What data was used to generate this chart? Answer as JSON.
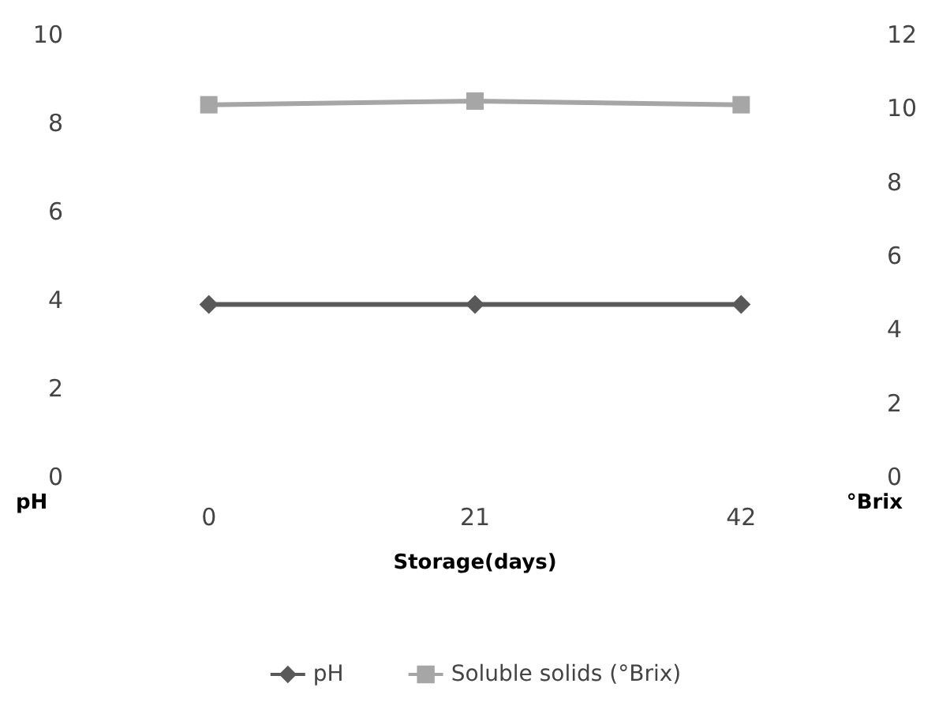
{
  "chart_data": {
    "type": "line",
    "xlabel": "Storage(days)",
    "ylabel": "pH",
    "y2label": "°Brix",
    "categories": [
      "0",
      "21",
      "42"
    ],
    "series": [
      {
        "name": "pH",
        "color": "#595959",
        "marker": "diamond",
        "values": [
          3.9,
          3.9,
          3.9
        ]
      },
      {
        "name": "Soluble solids (°Brix)",
        "color": "#a6a6a6",
        "marker": "square",
        "axis": "y2",
        "values": [
          10.1,
          10.2,
          10.1
        ]
      }
    ],
    "ylim": [
      0,
      10
    ],
    "yticks": [
      0,
      2,
      4,
      6,
      8,
      10
    ],
    "y2lim": [
      0,
      12
    ],
    "y2ticks": [
      0,
      2,
      4,
      6,
      8,
      10,
      12
    ],
    "grid": false,
    "legend": "bottom"
  }
}
